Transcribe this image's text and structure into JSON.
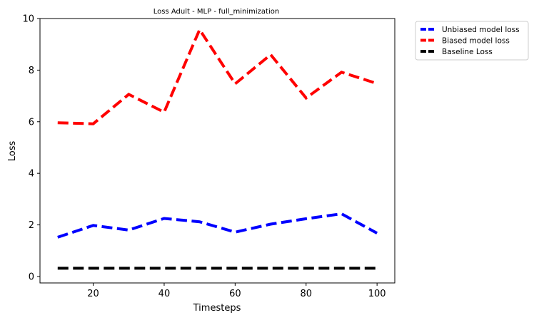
{
  "chart_data": {
    "type": "line",
    "title": "Loss Adult - MLP - full_minimization",
    "xlabel": "Timesteps",
    "ylabel": "Loss",
    "x": [
      10,
      20,
      30,
      40,
      50,
      60,
      70,
      80,
      90,
      100
    ],
    "xlim": [
      5,
      105
    ],
    "ylim": [
      -0.25,
      10.0
    ],
    "xticks": [
      20,
      40,
      60,
      80,
      100
    ],
    "yticks": [
      0,
      2,
      4,
      6,
      8,
      10
    ],
    "grid": false,
    "legend_position": "outside-top-right",
    "series": [
      {
        "name": "Unbiased model loss",
        "color": "#0000ff",
        "values": [
          1.52,
          1.98,
          1.8,
          2.25,
          2.12,
          1.72,
          2.03,
          2.24,
          2.43,
          1.68
        ]
      },
      {
        "name": "Biased model loss",
        "color": "#ff0000",
        "values": [
          5.96,
          5.92,
          7.06,
          6.37,
          9.57,
          7.47,
          8.6,
          6.92,
          7.92,
          7.48
        ]
      },
      {
        "name": "Baseline Loss",
        "color": "#000000",
        "values": [
          0.32,
          0.32,
          0.32,
          0.32,
          0.32,
          0.32,
          0.32,
          0.32,
          0.32,
          0.32
        ]
      }
    ]
  }
}
